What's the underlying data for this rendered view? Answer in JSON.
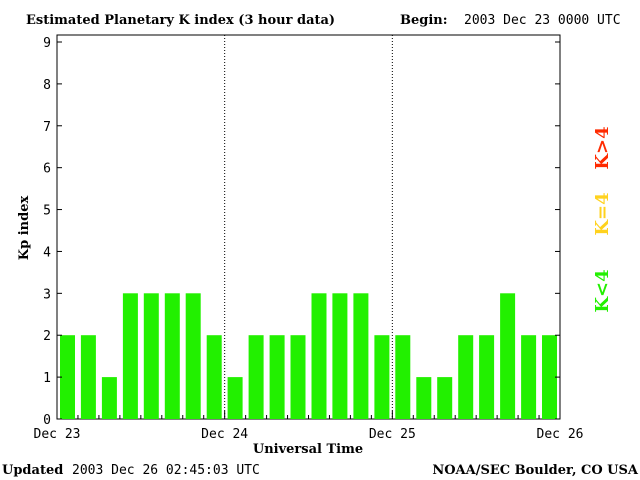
{
  "header": {
    "title": "Estimated Planetary K index (3 hour data)",
    "begin_label": "Begin:",
    "begin_value": "2003 Dec 23 0000 UTC"
  },
  "footer": {
    "updated_label": "Updated",
    "updated_value": "2003 Dec 26 02:45:03 UTC",
    "credit": "NOAA/SEC Boulder, CO USA"
  },
  "legend": [
    {
      "label": "K>4",
      "color": "#ff2a00"
    },
    {
      "label": "K=4",
      "color": "#ffd21e"
    },
    {
      "label": "K<4",
      "color": "#22f000"
    }
  ],
  "chart_data": {
    "type": "bar",
    "ylabel": "Kp index",
    "xlabel": "Universal Time",
    "ylim": [
      0,
      9
    ],
    "yticks": [
      "0",
      "1",
      "2",
      "3",
      "4",
      "5",
      "6",
      "7",
      "8",
      "9"
    ],
    "xticks": [
      "Dec 23",
      "Dec 24",
      "Dec 25",
      "Dec 26"
    ],
    "day_dividers": [
      "Dec 24",
      "Dec 25"
    ],
    "bar_color": "#22f000",
    "values": [
      2,
      2,
      1,
      3,
      3,
      3,
      3,
      2,
      1,
      2,
      2,
      2,
      3,
      3,
      3,
      2,
      2,
      1,
      1,
      2,
      2,
      3,
      2,
      2
    ]
  }
}
